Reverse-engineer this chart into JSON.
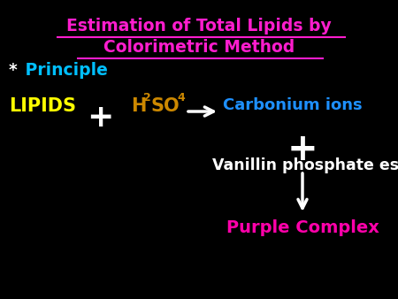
{
  "bg_color": "#000000",
  "title_line1": "Estimation of Total Lipids by",
  "title_line2": "Colorimetric Method",
  "title_color": "#ff1dce",
  "principle_star": "*",
  "principle_text": " Principle",
  "principle_star_color": "#ffffff",
  "principle_text_color": "#00bfff",
  "lipids_text": "LIPIDS",
  "lipids_color": "#ffff00",
  "plus1_color": "#ffffff",
  "h2so4_color": "#cc8800",
  "carbonium_text": "Carbonium ions",
  "carbonium_color": "#1e90ff",
  "plus2_color": "#ffffff",
  "vanillin_text": "Vanillin phosphate ester",
  "vanillin_color": "#ffffff",
  "purple_text": "Purple Complex",
  "purple_color": "#ff00aa",
  "arrow_color": "#ffffff"
}
